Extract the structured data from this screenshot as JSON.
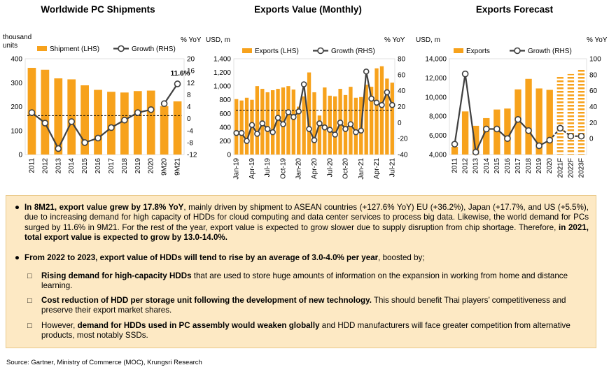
{
  "colors": {
    "bar": "#f7a21c",
    "line": "#404040",
    "dash": "#000000",
    "panel": "#fde9c4",
    "highlight": "#e36c0a"
  },
  "chart_data": [
    {
      "type": "bar+line",
      "title": "Worldwide PC Shipments",
      "ylabel_left": "thousand units",
      "ylabel_right": "% YoY",
      "categories": [
        "2011",
        "2012",
        "2013",
        "2014",
        "2015",
        "2016",
        "2017",
        "2018",
        "2019",
        "2020",
        "9M20",
        "9M21"
      ],
      "series": [
        {
          "name": "Shipment (LHS)",
          "kind": "bar",
          "axis": "left",
          "values": [
            362,
            354,
            318,
            314,
            289,
            270,
            262,
            259,
            265,
            267,
            202,
            222
          ]
        },
        {
          "name": "Growth (RHS)",
          "kind": "line",
          "axis": "right",
          "values": [
            2.0,
            -1.5,
            -10.0,
            -1.0,
            -8.0,
            -6.5,
            -3.0,
            -0.5,
            2.0,
            3.0,
            null,
            null
          ]
        },
        {
          "name": "",
          "kind": "line",
          "axis": "right",
          "values": [
            null,
            null,
            null,
            null,
            null,
            null,
            null,
            null,
            null,
            null,
            5.0,
            11.6
          ]
        }
      ],
      "highlight_label": "11.6%",
      "ylim_left": [
        0,
        400
      ],
      "ylim_right": [
        -12,
        20
      ],
      "yticks_left": [
        "0",
        "100",
        "200",
        "300",
        "400"
      ],
      "yticks_right": [
        "-12",
        "-8",
        "-4",
        "0",
        "4",
        "8",
        "12",
        "16",
        "20"
      ],
      "reference_line_right": 1.0
    },
    {
      "type": "bar+line",
      "title": "Exports Value (Monthly)",
      "ylabel_left": "USD, m",
      "ylabel_right": "% YoY",
      "x_tick_labels": [
        "Jan-19",
        "Apr-19",
        "Jul-19",
        "Oct-19",
        "Jan-20",
        "Apr-20",
        "Jul-20",
        "Oct-20",
        "Jan-21",
        "Apr-21",
        "Jul-21"
      ],
      "series": [
        {
          "name": "Exports (LHS)",
          "kind": "bar",
          "axis": "left",
          "values": [
            810,
            790,
            830,
            800,
            1000,
            960,
            910,
            940,
            960,
            980,
            1000,
            950,
            700,
            850,
            1200,
            910,
            570,
            980,
            860,
            850,
            960,
            870,
            990,
            830,
            840,
            1020,
            990,
            1260,
            1290,
            1110,
            1050
          ]
        },
        {
          "name": "Growth (RHS)",
          "kind": "line",
          "axis": "right",
          "values": [
            -13,
            -13,
            -23,
            -3,
            -14,
            -1,
            -8,
            -12,
            6,
            -2,
            13,
            7,
            14,
            48,
            -8,
            -22,
            -1,
            -6,
            -9,
            -15,
            0,
            -8,
            -2,
            -12,
            -10,
            64,
            30,
            25,
            22,
            38,
            22
          ]
        }
      ],
      "ylim_left": [
        0,
        1400
      ],
      "ylim_right": [
        -40,
        80
      ],
      "yticks_left": [
        "0",
        "200",
        "400",
        "600",
        "800",
        "1,000",
        "1,200",
        "1,400"
      ],
      "yticks_right": [
        "-40",
        "-20",
        "0",
        "20",
        "40",
        "60",
        "80"
      ],
      "reference_line_left": 648
    },
    {
      "type": "bar+line",
      "title": "Exports Forecast",
      "ylabel_left": "USD, m",
      "ylabel_right": "% YoY",
      "categories": [
        "2011",
        "2012",
        "2013",
        "2014",
        "2015",
        "2016",
        "2017",
        "2018",
        "2019",
        "2020",
        "2021F",
        "2022F",
        "2023F"
      ],
      "series": [
        {
          "name": "Exports",
          "kind": "bar",
          "axis": "left",
          "values": [
            4800,
            8500,
            7000,
            7800,
            8700,
            8800,
            10800,
            11900,
            10900,
            10750,
            12100,
            12400,
            13000
          ],
          "forecast_from": "2021F"
        },
        {
          "name": "Growth (RHS)",
          "kind": "line",
          "axis": "right",
          "values": [
            -7,
            81,
            -17,
            12,
            12,
            0,
            24,
            10,
            -9,
            -2,
            13,
            3,
            3
          ]
        }
      ],
      "ylim_left": [
        4000,
        14000
      ],
      "ylim_right": [
        -20,
        100
      ],
      "yticks_left": [
        "4,000",
        "6,000",
        "8,000",
        "10,000",
        "12,000",
        "14,000"
      ],
      "yticks_right": [
        "0",
        "20",
        "40",
        "60",
        "80",
        "100"
      ]
    }
  ],
  "summary": {
    "bullet1": {
      "bold1": "In 8M21, export value grew by 17.8% YoY",
      "text1": ", mainly driven by shipment to ASEAN countries (+127.6% YoY) EU (+36.2%), Japan (+17.7%, and US (+5.5%), due to increasing demand for high capacity of HDDs for cloud computing and data center services to process big data. Likewise, the world demand for PCs surged by 11.6% in 9M21. For the rest of the year, export value is expected to grow slower due to supply disruption from chip shortage. Therefore, ",
      "bold2": "in 2021, total export value is expected to grow by 13.0-14.0%."
    },
    "bullet2": {
      "bold": "From 2022 to 2023, export value of HDDs will tend to rise by an average of 3.0-4.0% per year",
      "text": ", boosted by;"
    },
    "sub1": {
      "bold": "Rising demand for high-capacity HDDs",
      "text": " that are used to store huge amounts of information on the expansion in working from home and distance learning."
    },
    "sub2": {
      "bold": "Cost reduction of HDD per storage unit following the development of new technology.",
      "text": " This should benefit Thai players’ competitiveness and  preserve their export market shares."
    },
    "sub3": {
      "text1": "However, ",
      "bold": "demand for HDDs used in PC assembly would weaken globally",
      "text2": " and HDD manufacturers will face greater competition from alternative products, most notably SSDs."
    }
  },
  "source": "Source: Gartner, Ministry of Commerce (MOC), Krungsri Research"
}
